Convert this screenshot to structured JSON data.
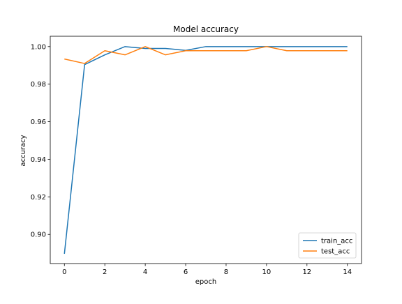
{
  "chart_data": {
    "type": "line",
    "title": "Model accuracy",
    "xlabel": "epoch",
    "ylabel": "accuracy",
    "x": [
      0,
      1,
      2,
      3,
      4,
      5,
      6,
      7,
      8,
      9,
      10,
      11,
      12,
      13,
      14
    ],
    "xlim": [
      -0.7,
      14.7
    ],
    "ylim": [
      0.8845,
      1.0055
    ],
    "xticks": [
      0,
      2,
      4,
      6,
      8,
      10,
      12,
      14
    ],
    "yticks": [
      0.9,
      0.92,
      0.94,
      0.96,
      0.98,
      1.0
    ],
    "xtick_labels": [
      "0",
      "2",
      "4",
      "6",
      "8",
      "10",
      "12",
      "14"
    ],
    "ytick_labels": [
      "0.90",
      "0.92",
      "0.94",
      "0.96",
      "0.98",
      "1.00"
    ],
    "grid": false,
    "legend_position": "lower-right",
    "series": [
      {
        "name": "train_acc",
        "color": "#1f77b4",
        "values": [
          0.8897,
          0.9904,
          0.9956,
          1.0,
          0.999,
          0.999,
          0.998,
          1.0,
          1.0,
          1.0,
          1.0,
          1.0,
          1.0,
          1.0,
          1.0
        ]
      },
      {
        "name": "test_acc",
        "color": "#ff7f0e",
        "values": [
          0.9934,
          0.991,
          0.9978,
          0.9956,
          1.0,
          0.9956,
          0.9978,
          0.9978,
          0.9978,
          0.9978,
          1.0,
          0.9978,
          0.9978,
          0.9978,
          0.9978
        ]
      }
    ]
  }
}
